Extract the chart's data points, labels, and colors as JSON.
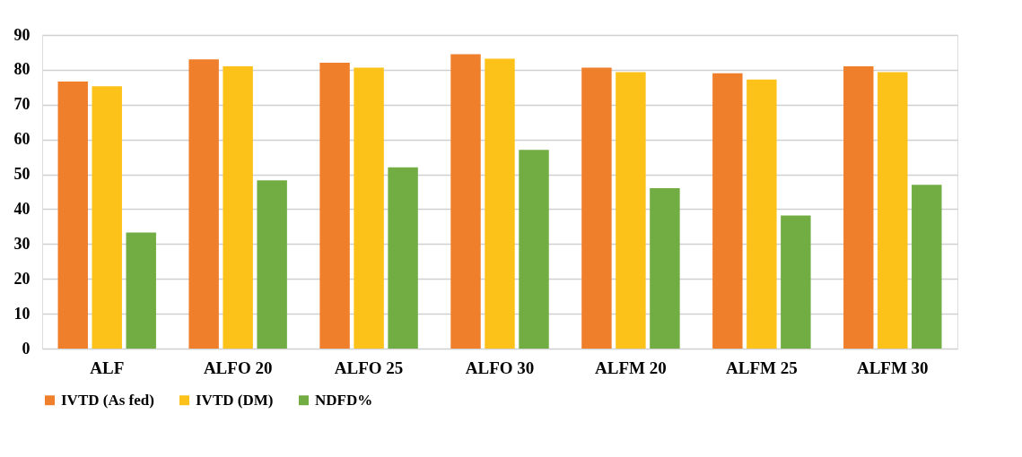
{
  "chart_data": {
    "type": "bar",
    "categories": [
      "ALF",
      "ALFO 20",
      "ALFO 25",
      "ALFO 30",
      "ALFM 20",
      "ALFM 25",
      "ALFM 30"
    ],
    "series": [
      {
        "name": "IVTD (As fed)",
        "color": "#f07f2c",
        "values": [
          76.6,
          83.0,
          82.0,
          84.5,
          80.6,
          79.0,
          81.0
        ]
      },
      {
        "name": "IVTD (DM)",
        "color": "#fcc21a",
        "values": [
          75.3,
          81.0,
          80.6,
          83.2,
          79.3,
          77.2,
          79.3
        ]
      },
      {
        "name": "NDFD%",
        "color": "#72ad44",
        "values": [
          33.3,
          48.3,
          52.0,
          57.0,
          46.0,
          38.2,
          47.0
        ]
      }
    ],
    "ylim": [
      0,
      90
    ],
    "yticks": [
      0,
      10,
      20,
      30,
      40,
      50,
      60,
      70,
      80,
      90
    ],
    "grid": "y",
    "legend": "bottom"
  }
}
